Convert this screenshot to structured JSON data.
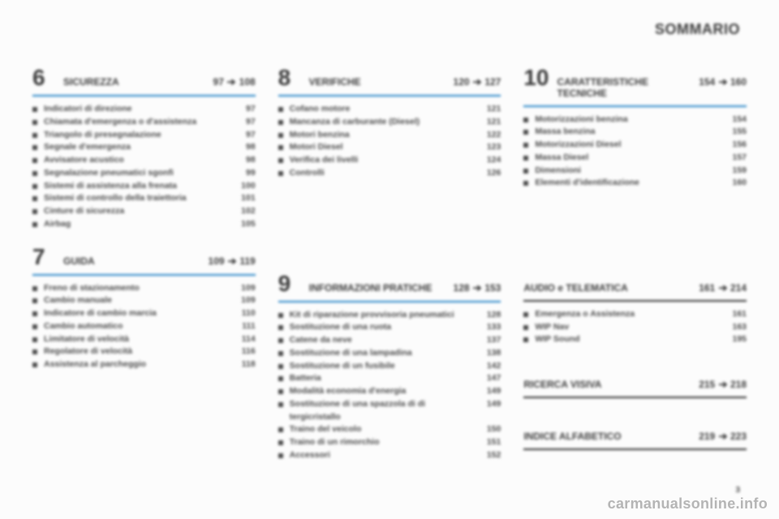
{
  "header": {
    "title": "SOMMARIO"
  },
  "colors": {
    "accent": "#1b7fc4",
    "rule": "#2b2b2b",
    "text": "#4a4a4a"
  },
  "arrow": "➔",
  "page_corner": "3",
  "watermark": "carmanualsonline.info",
  "sections": {
    "s6": {
      "num": "6",
      "title": "SICUREZZA",
      "range_from": "97",
      "range_to": "108",
      "divider": "blue",
      "items": [
        {
          "label": "Indicatori di direzione",
          "page": "97"
        },
        {
          "label": "Chiamata d'emergenza o d'assistenza",
          "page": "97"
        },
        {
          "label": "Triangolo di presegnalazione",
          "page": "97"
        },
        {
          "label": "Segnale d'emergenza",
          "page": "98"
        },
        {
          "label": "Avvisatore acustico",
          "page": "98"
        },
        {
          "label": "Segnalazione pneumatici sgonfi",
          "page": "99"
        },
        {
          "label": "Sistemi di assistenza alla frenata",
          "page": "100"
        },
        {
          "label": "Sistemi di controllo della traiettoria",
          "page": "101"
        },
        {
          "label": "Cinture di sicurezza",
          "page": "102"
        },
        {
          "label": "Airbag",
          "page": "105"
        }
      ]
    },
    "s7": {
      "num": "7",
      "title": "GUIDA",
      "range_from": "109",
      "range_to": "119",
      "divider": "blue",
      "items": [
        {
          "label": "Freno di stazionamento",
          "page": "109"
        },
        {
          "label": "Cambio manuale",
          "page": "109"
        },
        {
          "label": "Indicatore di cambio marcia",
          "page": "110"
        },
        {
          "label": "Cambio automatico",
          "page": "111"
        },
        {
          "label": "Limitatore di velocità",
          "page": "114"
        },
        {
          "label": "Regolatore di velocità",
          "page": "116"
        },
        {
          "label": "Assistenza al parcheggio",
          "page": "118"
        }
      ]
    },
    "s8": {
      "num": "8",
      "title": "VERIFICHE",
      "range_from": "120",
      "range_to": "127",
      "divider": "blue",
      "items": [
        {
          "label": "Cofano motore",
          "page": "121"
        },
        {
          "label": "Mancanza di carburante (Diesel)",
          "page": "121"
        },
        {
          "label": "Motori benzina",
          "page": "122"
        },
        {
          "label": "Motori Diesel",
          "page": "123"
        },
        {
          "label": "Verifica dei livelli",
          "page": "124"
        },
        {
          "label": "Controlli",
          "page": "126"
        }
      ]
    },
    "s9": {
      "num": "9",
      "title": "INFORMAZIONI PRATICHE",
      "range_from": "128",
      "range_to": "153",
      "divider": "blue",
      "items": [
        {
          "label": "Kit di riparazione provvisoria pneumatici",
          "page": "128"
        },
        {
          "label": "Sostituzione di una ruota",
          "page": "133"
        },
        {
          "label": "Catene da neve",
          "page": "137"
        },
        {
          "label": "Sostituzione di una lampadina",
          "page": "138"
        },
        {
          "label": "Sostituzione di un fusibile",
          "page": "142"
        },
        {
          "label": "Batteria",
          "page": "147"
        },
        {
          "label": "Modalità economia d'energia",
          "page": "149"
        },
        {
          "label": "Sostituzione di una spazzola di di tergicristallo",
          "page": "149"
        },
        {
          "label": "Traino del veicolo",
          "page": "150"
        },
        {
          "label": "Traino di un rimorchio",
          "page": "151"
        },
        {
          "label": "Accessori",
          "page": "152"
        }
      ]
    },
    "s10": {
      "num": "10",
      "title": "CARATTERISTICHE TECNICHE",
      "range_from": "154",
      "range_to": "160",
      "divider": "blue",
      "items": [
        {
          "label": "Motorizzazioni benzina",
          "page": "154"
        },
        {
          "label": "Massa benzina",
          "page": "155"
        },
        {
          "label": "Motorizzazioni Diesel",
          "page": "156"
        },
        {
          "label": "Massa Diesel",
          "page": "157"
        },
        {
          "label": "Dimensioni",
          "page": "159"
        },
        {
          "label": "Elementi d'identificazione",
          "page": "160"
        }
      ]
    },
    "audio": {
      "num": "",
      "title": "AUDIO e TELEMATICA",
      "range_from": "161",
      "range_to": "214",
      "divider": "black",
      "items": [
        {
          "label": "Emergenza o Assistenza",
          "page": "161"
        },
        {
          "label": "WIP Nav",
          "page": "163"
        },
        {
          "label": "WIP Sound",
          "page": "195"
        }
      ]
    },
    "ricerca": {
      "num": "",
      "title": "RICERCA VISIVA",
      "range_from": "215",
      "range_to": "218",
      "divider": "black",
      "items": []
    },
    "indice": {
      "num": "",
      "title": "INDICE ALFABETICO",
      "range_from": "219",
      "range_to": "223",
      "divider": "black",
      "items": []
    }
  }
}
